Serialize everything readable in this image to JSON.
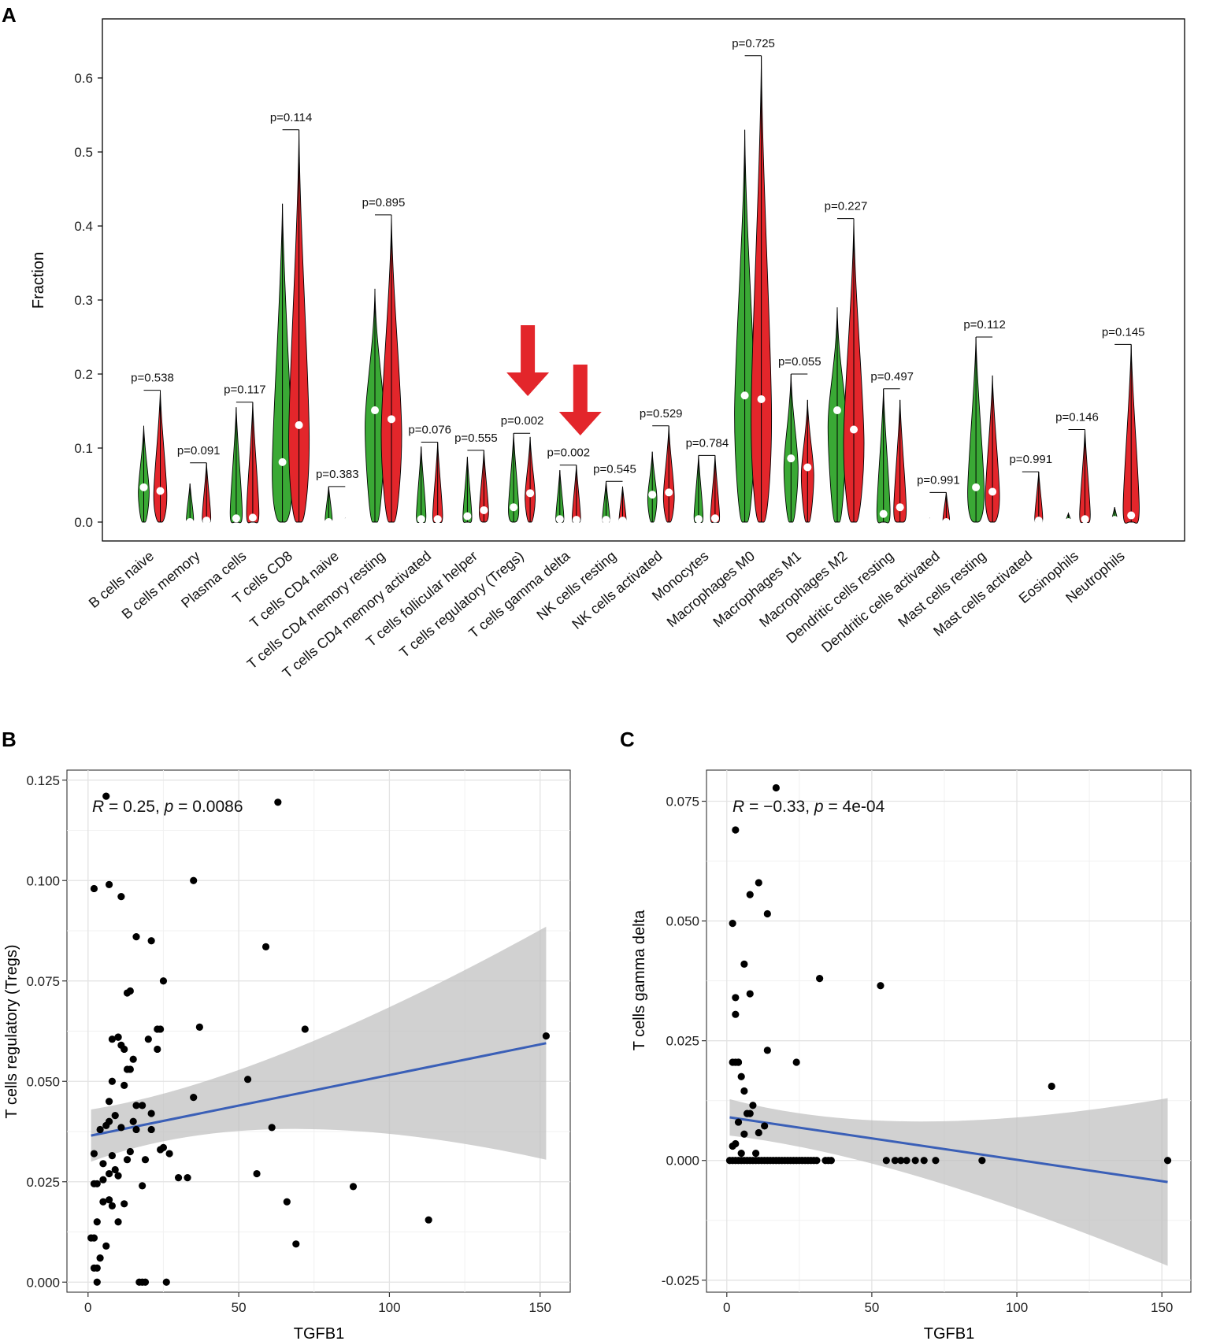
{
  "figure": {
    "panel_labels": [
      "A",
      "B",
      "C"
    ]
  },
  "chart_data": [
    {
      "panel": "A",
      "type": "violin",
      "ylabel": "Fraction",
      "ylim": [
        0,
        0.67
      ],
      "yticks": [
        0.0,
        0.1,
        0.2,
        0.3,
        0.4,
        0.5,
        0.6
      ],
      "ytick_labels": [
        "0.0",
        "0.1",
        "0.2",
        "0.3",
        "0.4",
        "0.5",
        "0.6"
      ],
      "group_colors": [
        "#3aa935",
        "#e3262b"
      ],
      "arrow_color": "#e3262b",
      "arrows_at": [
        "T cells regulatory (Tregs)",
        "T cells gamma delta"
      ],
      "categories": [
        "B cells naive",
        "B cells memory",
        "Plasma cells",
        "T cells CD8",
        "T cells CD4 naive",
        "T cells CD4 memory resting",
        "T cells CD4 memory activated",
        "T cells follicular helper",
        "T cells regulatory (Tregs)",
        "T cells gamma delta",
        "NK cells resting",
        "NK cells activated",
        "Monocytes",
        "Macrophages M0",
        "Macrophages M1",
        "Macrophages M2",
        "Dendritic cells resting",
        "Dendritic cells activated",
        "Mast cells resting",
        "Mast cells activated",
        "Eosinophils",
        "Neutrophils"
      ],
      "p_values": [
        "p=0.538",
        "p=0.091",
        "p=0.117",
        "p=0.114",
        "p=0.383",
        "p=0.895",
        "p=0.076",
        "p=0.555",
        "p=0.002",
        "p=0.002",
        "p=0.545",
        "p=0.529",
        "p=0.784",
        "p=0.725",
        "p=0.055",
        "p=0.227",
        "p=0.497",
        "p=0.991",
        "p=0.112",
        "p=0.991",
        "p=0.146",
        "p=0.145"
      ],
      "series": [
        {
          "name": "green group",
          "max": [
            0.13,
            0.052,
            0.155,
            0.43,
            0.048,
            0.315,
            0.102,
            0.088,
            0.12,
            0.07,
            0.055,
            0.095,
            0.09,
            0.53,
            0.2,
            0.29,
            0.18,
            0.005,
            0.25,
            0.004,
            0.012,
            0.02
          ],
          "median": [
            0.047,
            0.0,
            0.005,
            0.081,
            0.0,
            0.151,
            0.004,
            0.008,
            0.02,
            0.004,
            0.003,
            0.037,
            0.004,
            0.171,
            0.086,
            0.151,
            0.011,
            0.0,
            0.047,
            0.0,
            0.0,
            0.003
          ]
        },
        {
          "name": "red group",
          "max": [
            0.178,
            0.08,
            0.162,
            0.53,
            0.005,
            0.415,
            0.108,
            0.097,
            0.115,
            0.077,
            0.048,
            0.13,
            0.09,
            0.63,
            0.165,
            0.41,
            0.165,
            0.04,
            0.198,
            0.068,
            0.125,
            0.24
          ],
          "median": [
            0.042,
            0.002,
            0.006,
            0.131,
            0.0,
            0.139,
            0.004,
            0.016,
            0.039,
            0.003,
            0.002,
            0.04,
            0.005,
            0.166,
            0.074,
            0.125,
            0.02,
            0.0,
            0.041,
            0.002,
            0.004,
            0.009
          ]
        }
      ]
    },
    {
      "panel": "B",
      "type": "scatter",
      "xlabel": "TGFB1",
      "ylabel": "T cells regulatory (Tregs)",
      "xlim": [
        -7,
        160
      ],
      "ylim": [
        -0.0025,
        0.1275
      ],
      "xticks": [
        0,
        50,
        100,
        150
      ],
      "xtick_labels": [
        "0",
        "50",
        "100",
        "150"
      ],
      "yticks": [
        0.0,
        0.025,
        0.05,
        0.075,
        0.1,
        0.125
      ],
      "ytick_labels": [
        "0.000",
        "0.025",
        "0.050",
        "0.075",
        "0.100",
        "0.125"
      ],
      "annotation": {
        "r_label": "R",
        "r_value": " = 0.25, ",
        "p_label": "p",
        "p_value": " = 0.0086"
      },
      "fit": {
        "color": "#3a5fb7",
        "x": [
          1,
          152
        ],
        "y": [
          0.0365,
          0.0595
        ],
        "band_upper": [
          0.043,
          0.0885
        ],
        "band_lower": [
          0.03,
          0.0305
        ],
        "band_x": [
          1,
          152
        ]
      },
      "points": {
        "x": [
          6,
          2,
          7,
          11,
          35,
          16,
          21,
          59,
          25,
          14,
          13,
          10,
          10,
          8,
          11,
          12,
          15,
          20,
          24,
          23,
          23,
          72,
          37,
          8,
          7,
          11,
          12,
          13,
          14,
          16,
          18,
          16,
          21,
          53,
          35,
          7,
          6,
          4,
          9,
          15,
          21,
          61,
          5,
          2,
          8,
          9,
          10,
          7,
          14,
          13,
          24,
          27,
          30,
          33,
          56,
          3,
          2,
          5,
          8,
          12,
          19,
          3,
          5,
          2,
          10,
          4,
          66,
          18,
          25,
          2,
          3,
          6,
          69,
          88,
          113,
          152,
          17,
          18,
          19,
          26,
          63,
          1,
          3,
          7
        ],
        "y": [
          0.121,
          0.098,
          0.099,
          0.096,
          0.1,
          0.086,
          0.085,
          0.0835,
          0.075,
          0.0725,
          0.072,
          0.061,
          0.061,
          0.0605,
          0.059,
          0.058,
          0.0555,
          0.0605,
          0.063,
          0.063,
          0.058,
          0.063,
          0.0635,
          0.05,
          0.045,
          0.0385,
          0.049,
          0.053,
          0.053,
          0.044,
          0.044,
          0.038,
          0.038,
          0.0505,
          0.046,
          0.04,
          0.039,
          0.038,
          0.0415,
          0.04,
          0.042,
          0.0385,
          0.0295,
          0.032,
          0.0315,
          0.028,
          0.0265,
          0.027,
          0.0325,
          0.0305,
          0.033,
          0.032,
          0.026,
          0.026,
          0.027,
          0.0245,
          0.0245,
          0.0255,
          0.019,
          0.0195,
          0.0305,
          0.015,
          0.02,
          0.011,
          0.015,
          0.006,
          0.02,
          0.024,
          0.0335,
          0.0035,
          0.0035,
          0.009,
          0.0095,
          0.0238,
          0.0155,
          0.0613,
          0.0,
          0.0,
          0.0,
          0.0,
          0.1195,
          0.011,
          0.0,
          0.0205
        ]
      }
    },
    {
      "panel": "C",
      "type": "scatter",
      "xlabel": "TGFB1",
      "ylabel": "T cells gamma delta",
      "xlim": [
        -7,
        160
      ],
      "ylim": [
        -0.0275,
        0.0815
      ],
      "xticks": [
        0,
        50,
        100,
        150
      ],
      "xtick_labels": [
        "0",
        "50",
        "100",
        "150"
      ],
      "yticks": [
        -0.025,
        0.0,
        0.025,
        0.05,
        0.075
      ],
      "ytick_labels": [
        "-0.025",
        "0.000",
        "0.025",
        "0.050",
        "0.075"
      ],
      "annotation": {
        "r_label": "R",
        "r_value": " = −0.33, ",
        "p_label": "p",
        "p_value": " = 4e-04"
      },
      "fit": {
        "color": "#3a5fb7",
        "x": [
          1,
          152
        ],
        "y": [
          0.009,
          -0.0045
        ],
        "band_upper": [
          0.0128,
          0.013
        ],
        "band_lower": [
          0.0052,
          -0.022
        ],
        "band_x": [
          1,
          152
        ]
      },
      "points": {
        "x": [
          17,
          3,
          11,
          8,
          14,
          2,
          6,
          32,
          3,
          53,
          8,
          3,
          14,
          24,
          2,
          4,
          4,
          3,
          5,
          6,
          7,
          8,
          9,
          4,
          11,
          13,
          6,
          2,
          3,
          5,
          10,
          112,
          152,
          88,
          72,
          55,
          58,
          60,
          62,
          65,
          68,
          1,
          2,
          3,
          4,
          5,
          6,
          7,
          8,
          9,
          10,
          11,
          12,
          13,
          14,
          15,
          16,
          17,
          18,
          19,
          20,
          21,
          22,
          23,
          24,
          25,
          26,
          27,
          28,
          29,
          30,
          31,
          34,
          35,
          36
        ],
        "y": [
          0.0778,
          0.069,
          0.058,
          0.0555,
          0.0515,
          0.0495,
          0.041,
          0.038,
          0.034,
          0.0365,
          0.0348,
          0.0305,
          0.023,
          0.0205,
          0.0205,
          0.0205,
          0.0205,
          0.0205,
          0.0175,
          0.0145,
          0.0098,
          0.0098,
          0.0115,
          0.008,
          0.0058,
          0.0072,
          0.0055,
          0.003,
          0.0035,
          0.0015,
          0.0015,
          0.0155,
          0.0,
          0.0,
          0.0,
          0.0,
          0.0,
          0.0,
          0.0,
          0.0,
          0.0,
          0.0,
          0.0,
          0.0,
          0.0,
          0.0,
          0.0,
          0.0,
          0.0,
          0.0,
          0.0,
          0.0,
          0.0,
          0.0,
          0.0,
          0.0,
          0.0,
          0.0,
          0.0,
          0.0,
          0.0,
          0.0,
          0.0,
          0.0,
          0.0,
          0.0,
          0.0,
          0.0,
          0.0,
          0.0,
          0.0,
          0.0,
          0.0,
          0.0,
          0.0
        ]
      }
    }
  ]
}
